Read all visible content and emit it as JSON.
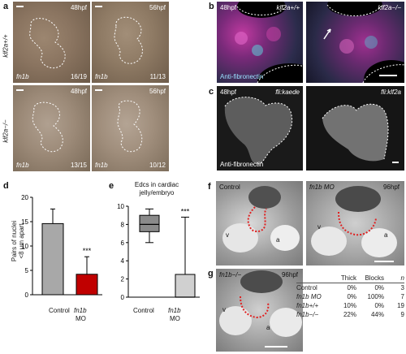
{
  "panels": {
    "a": {
      "letter": "a",
      "row_labels": [
        "klf2a+/+",
        "klf2a−/−"
      ],
      "tiles": [
        {
          "time": "48hpf",
          "gene": "fn1b",
          "count": "16/19"
        },
        {
          "time": "56hpf",
          "gene": "fn1b",
          "count": "11/13"
        },
        {
          "time": "48hpf",
          "gene": "fn1b",
          "count": "13/15"
        },
        {
          "time": "56hpf",
          "gene": "fn1b",
          "count": "10/12"
        }
      ]
    },
    "b": {
      "letter": "b",
      "time": "48hpf",
      "left_label": "klf2a+/+",
      "right_label": "klf2a−/−",
      "stain_label": "Anti-fibronectin"
    },
    "c": {
      "letter": "c",
      "time": "48hpf",
      "left_label": "fli:kaede",
      "right_label": "fli:klf2a",
      "stain_label": "Anti-fibronectin"
    },
    "d": {
      "letter": "d",
      "ylabel_line1": "Pairs of nuclei",
      "ylabel_line2": "<8 µm apart",
      "significance": "***",
      "category_labels": [
        "Control",
        "fn1b",
        "MO"
      ]
    },
    "e": {
      "letter": "e",
      "title_line1": "Edcs in cardiac",
      "title_line2": "jelly/embryo",
      "significance": "***",
      "category_labels": [
        "Control",
        "fn1b",
        "MO"
      ]
    },
    "f": {
      "letter": "f",
      "left_label": "Control",
      "right_label": "fn1b MO",
      "time": "96hpf",
      "v": "v",
      "a": "a"
    },
    "g": {
      "letter": "g",
      "label": "fn1b−/−",
      "time": "96hpf",
      "v": "v",
      "a": "a"
    }
  },
  "table": {
    "headers": [
      "",
      "Thick",
      "Blocks",
      "n"
    ],
    "rows": [
      [
        "Control",
        "0%",
        "0%",
        "3"
      ],
      [
        "fn1b MO",
        "0%",
        "100%",
        "7"
      ],
      [
        "fn1b+/+",
        "10%",
        "0%",
        "19"
      ],
      [
        "fn1b−/−",
        "22%",
        "44%",
        "9"
      ]
    ]
  },
  "chart_data": [
    {
      "type": "bar",
      "panel": "d",
      "categories": [
        "Control",
        "fn1b MO"
      ],
      "values": [
        14.6,
        4.2
      ],
      "error_upper": [
        17.6,
        7.8
      ],
      "ylabel": "Pairs of nuclei <8 µm apart",
      "ylim": [
        0,
        20
      ],
      "yticks": [
        0,
        5,
        10,
        15,
        20
      ],
      "colors": [
        "#a8a8a8",
        "#c00000"
      ]
    },
    {
      "type": "box",
      "panel": "e",
      "categories": [
        "Control",
        "fn1b MO"
      ],
      "title": "Edcs in cardiac jelly/embryo",
      "ylim": [
        0,
        10
      ],
      "yticks": [
        0,
        2,
        4,
        6,
        8,
        10
      ],
      "boxes": [
        {
          "min": 6.0,
          "q1": 7.2,
          "median": 8.0,
          "q3": 9.0,
          "max": 9.7
        },
        {
          "min": 0,
          "q1": 0,
          "median": 0,
          "q3": 2.5,
          "max": 8.8
        }
      ],
      "colors": [
        "#8a8a8a",
        "#d0d0d0"
      ]
    }
  ]
}
